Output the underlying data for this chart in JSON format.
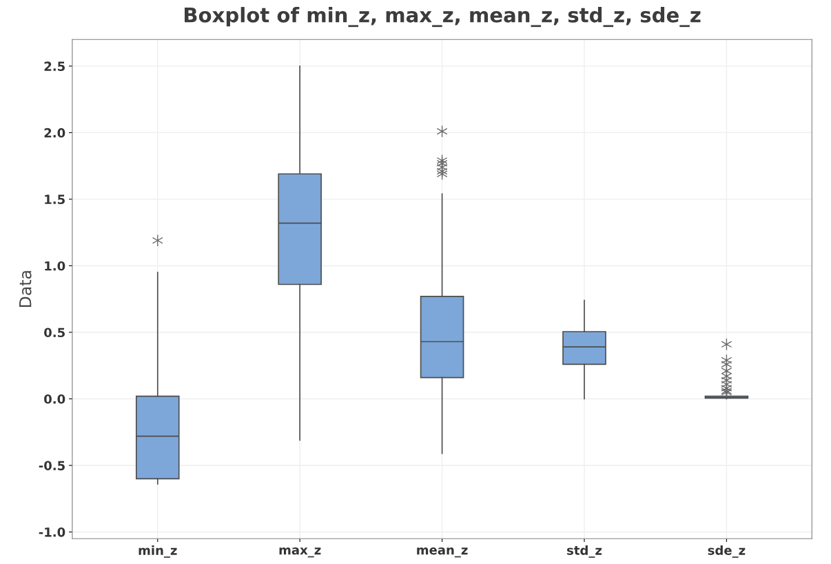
{
  "chart_data": {
    "type": "box",
    "title": "Boxplot of min_z, max_z, mean_z, std_z, sde_z",
    "ylabel": "Data",
    "categories": [
      "min_z",
      "max_z",
      "mean_z",
      "std_z",
      "sde_z"
    ],
    "color": "#7da7d9",
    "boxes": [
      {
        "low": -0.64,
        "q1": -0.6,
        "median": -0.28,
        "q3": 0.02,
        "high": 0.95,
        "outliers": [
          1.19
        ]
      },
      {
        "low": -0.31,
        "q1": 0.86,
        "median": 1.32,
        "q3": 1.69,
        "high": 2.5
      },
      {
        "low": -0.41,
        "q1": 0.16,
        "median": 0.43,
        "q3": 0.77,
        "high": 1.54,
        "outliers": [
          2.01,
          1.79,
          1.77,
          1.74,
          1.71,
          1.69
        ]
      },
      {
        "low": 0.0,
        "q1": 0.26,
        "median": 0.39,
        "q3": 0.505,
        "high": 0.74
      },
      {
        "low": 0.0,
        "q1": 0.005,
        "median": 0.01,
        "q3": 0.02,
        "high": 0.04,
        "outliers": [
          0.41,
          0.29,
          0.26,
          0.21,
          0.17,
          0.14,
          0.11,
          0.08,
          0.06,
          0.05
        ]
      }
    ],
    "ylim": [
      -1.05,
      2.7
    ],
    "yticks": [
      {
        "value": -1.0,
        "label": "-1.0"
      },
      {
        "value": -0.5,
        "label": "-0.5"
      },
      {
        "value": 0.0,
        "label": "0.0"
      },
      {
        "value": 0.5,
        "label": "0.5"
      },
      {
        "value": 1.0,
        "label": "1.0"
      },
      {
        "value": 1.5,
        "label": "1.5"
      },
      {
        "value": 2.0,
        "label": "2.0"
      },
      {
        "value": 2.5,
        "label": "2.5"
      }
    ],
    "grid": true,
    "marker": "star"
  }
}
